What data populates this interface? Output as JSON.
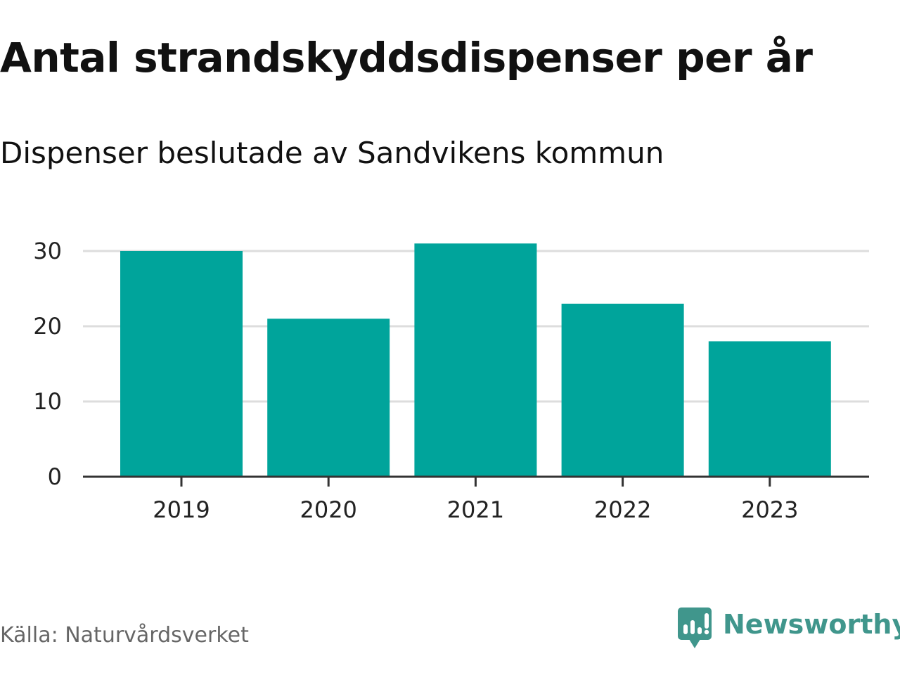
{
  "header": {
    "title": "Antal strandskyddsdispenser per år",
    "subtitle": "Dispenser beslutade av Sandvikens kommun"
  },
  "footer": {
    "source": "Källa: Naturvårdsverket",
    "brand": "Newsworthy"
  },
  "colors": {
    "bar": "#00a49b",
    "grid": "#dddddd",
    "axis": "#333333",
    "brand": "#40968c"
  },
  "chart_data": {
    "type": "bar",
    "title": "Antal strandskyddsdispenser per år",
    "subtitle": "Dispenser beslutade av Sandvikens kommun",
    "categories": [
      "2019",
      "2020",
      "2021",
      "2022",
      "2023"
    ],
    "values": [
      30,
      21,
      31,
      23,
      18
    ],
    "xlabel": "",
    "ylabel": "",
    "ylim": [
      0,
      30
    ],
    "yticks": [
      0,
      10,
      20,
      30
    ],
    "grid": true,
    "legend": "none"
  }
}
